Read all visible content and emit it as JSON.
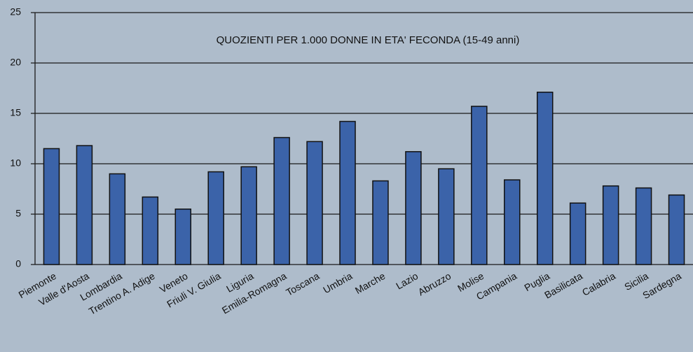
{
  "chart_data": {
    "type": "bar",
    "title": "QUOZIENTI PER 1.000 DONNE IN ETA' FECONDA (15-49 anni)",
    "categories": [
      "Piemonte",
      "Valle d'Aosta",
      "Lombardia",
      "Trentino A. Adige",
      "Veneto",
      "Friuli V. Giulia",
      "Liguria",
      "Emilia-Romagna",
      "Toscana",
      "Umbria",
      "Marche",
      "Lazio",
      "Abruzzo",
      "Molise",
      "Campania",
      "Puglia",
      "Basilicata",
      "Calabria",
      "Sicilia",
      "Sardegna"
    ],
    "values": [
      11.5,
      11.8,
      9.0,
      6.7,
      5.5,
      9.2,
      9.7,
      12.6,
      12.2,
      14.2,
      8.3,
      11.2,
      9.5,
      15.7,
      8.4,
      17.1,
      6.1,
      7.8,
      7.6,
      6.9
    ],
    "color": "#3b63a9",
    "ylim": [
      0,
      25
    ],
    "yticks": [
      0,
      5,
      10,
      15,
      20,
      25
    ],
    "grid": true
  }
}
